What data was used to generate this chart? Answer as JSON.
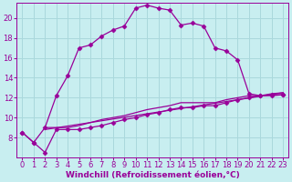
{
  "background_color": "#c8eef0",
  "grid_color": "#aad8dc",
  "line_color": "#990099",
  "marker": "D",
  "markersize": 2.5,
  "xlabel": "Windchill (Refroidissement éolien,°C)",
  "xlabel_fontsize": 6.5,
  "tick_fontsize": 6.0,
  "xlim": [
    -0.5,
    23.5
  ],
  "ylim": [
    6,
    21.5
  ],
  "yticks": [
    8,
    10,
    12,
    14,
    16,
    18,
    20
  ],
  "xticks": [
    0,
    1,
    2,
    3,
    4,
    5,
    6,
    7,
    8,
    9,
    10,
    11,
    12,
    13,
    14,
    15,
    16,
    17,
    18,
    19,
    20,
    21,
    22,
    23
  ],
  "series1_x": [
    0,
    1,
    2,
    3,
    4,
    5,
    6,
    7,
    8,
    9,
    10,
    11,
    12,
    13,
    14,
    15,
    16,
    17,
    18,
    19,
    20,
    21,
    22,
    23
  ],
  "series1_y": [
    8.5,
    7.5,
    9.0,
    12.2,
    14.2,
    17.0,
    17.3,
    18.2,
    18.8,
    19.2,
    21.0,
    21.3,
    21.0,
    20.8,
    19.3,
    19.5,
    19.2,
    17.0,
    16.7,
    15.8,
    12.4,
    12.2,
    12.2,
    12.3
  ],
  "series2_x": [
    0,
    1,
    2,
    3,
    4,
    5,
    6,
    7,
    8,
    9,
    10,
    11,
    12,
    13,
    14,
    15,
    16,
    17,
    18,
    19,
    20,
    21,
    22,
    23
  ],
  "series2_y": [
    8.5,
    7.5,
    6.5,
    8.8,
    8.8,
    8.8,
    9.0,
    9.2,
    9.5,
    9.8,
    10.0,
    10.3,
    10.5,
    10.8,
    11.0,
    11.0,
    11.2,
    11.2,
    11.5,
    11.8,
    12.0,
    12.2,
    12.3,
    12.3
  ],
  "series3_x": [
    2,
    3,
    4,
    5,
    6,
    7,
    8,
    9,
    10,
    11,
    12,
    13,
    14,
    15,
    16,
    17,
    18,
    19,
    20,
    21,
    22,
    23
  ],
  "series3_y": [
    9.0,
    9.0,
    9.0,
    9.2,
    9.5,
    9.8,
    10.0,
    10.2,
    10.5,
    10.8,
    11.0,
    11.2,
    11.5,
    11.5,
    11.5,
    11.5,
    11.8,
    12.0,
    12.2,
    12.2,
    12.4,
    12.5
  ],
  "series4_x": [
    2,
    23
  ],
  "series4_y": [
    8.8,
    12.5
  ]
}
